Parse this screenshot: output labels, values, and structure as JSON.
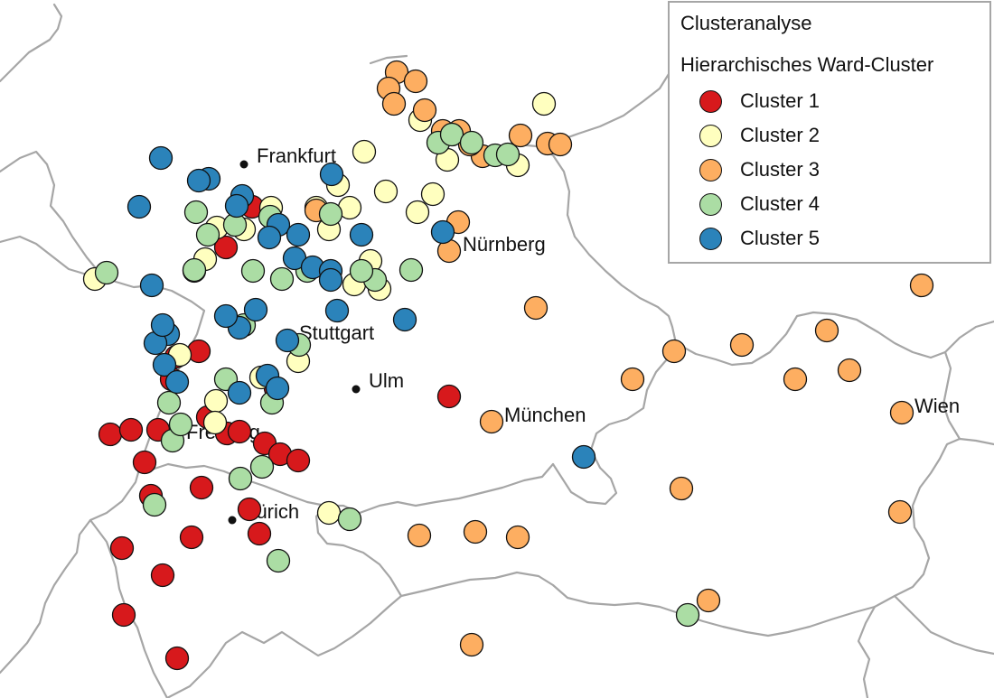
{
  "legend": {
    "title": "Clusteranalyse",
    "subtitle": "Hierarchisches Ward-Cluster",
    "items": [
      {
        "label": "Cluster 1",
        "color": "#d7191c"
      },
      {
        "label": "Cluster 2",
        "color": "#ffffbf"
      },
      {
        "label": "Cluster 3",
        "color": "#fdae61"
      },
      {
        "label": "Cluster 4",
        "color": "#abdda4"
      },
      {
        "label": "Cluster 5",
        "color": "#2b83ba"
      }
    ]
  },
  "cities": [
    {
      "id": "frankfurt",
      "name": "Frankfurt"
    },
    {
      "id": "nuernberg",
      "name": "Nürnberg"
    },
    {
      "id": "stuttgart",
      "name": "Stuttgart"
    },
    {
      "id": "ulm",
      "name": "Ulm"
    },
    {
      "id": "muenchen",
      "name": "München"
    },
    {
      "id": "freiburg",
      "name": "Freiburg"
    },
    {
      "id": "zuerich",
      "name": "Zürich"
    },
    {
      "id": "wien",
      "name": "Wien"
    }
  ],
  "sites_summary": {
    "Cluster 1": 26,
    "Cluster 2": 27,
    "Cluster 3": 34,
    "Cluster 4": 31,
    "Cluster 5": 32
  }
}
